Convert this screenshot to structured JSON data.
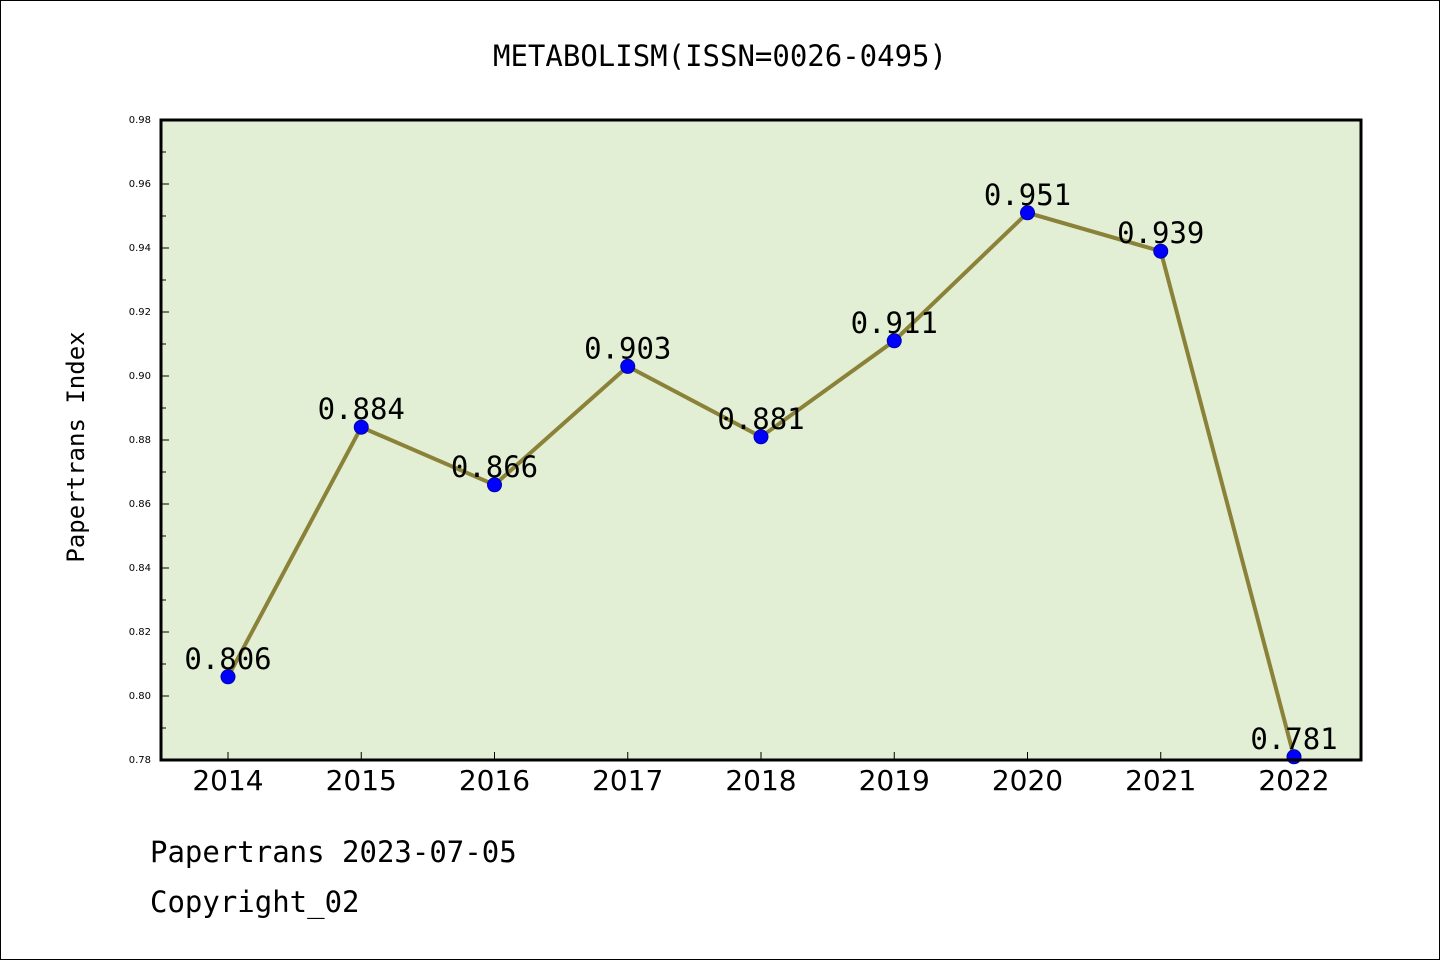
{
  "chart_data": {
    "type": "line",
    "title": "METABOLISM(ISSN=0026-0495)",
    "xlabel": "",
    "ylabel": "Papertrans Index",
    "categories": [
      "2014",
      "2015",
      "2016",
      "2017",
      "2018",
      "2019",
      "2020",
      "2021",
      "2022"
    ],
    "series": [
      {
        "values": [
          0.806,
          0.884,
          0.866,
          0.903,
          0.881,
          0.911,
          0.951,
          0.939,
          0.781
        ],
        "labels": [
          "0.806",
          "0.884",
          "0.866",
          "0.903",
          "0.881",
          "0.911",
          "0.951",
          "0.939",
          "0.781"
        ]
      }
    ],
    "ylim": [
      0.78,
      0.98
    ],
    "yticks": [
      "0.78",
      "0.80",
      "0.82",
      "0.84",
      "0.86",
      "0.88",
      "0.90",
      "0.92",
      "0.94",
      "0.96",
      "0.98"
    ],
    "grid": false,
    "legend": "none",
    "colors": {
      "plot_background": "#e2efd4",
      "line": "#8b8239",
      "marker": "#0000ff"
    }
  },
  "footer": {
    "line1": "Papertrans 2023-07-05",
    "line2": "Copyright_02"
  }
}
